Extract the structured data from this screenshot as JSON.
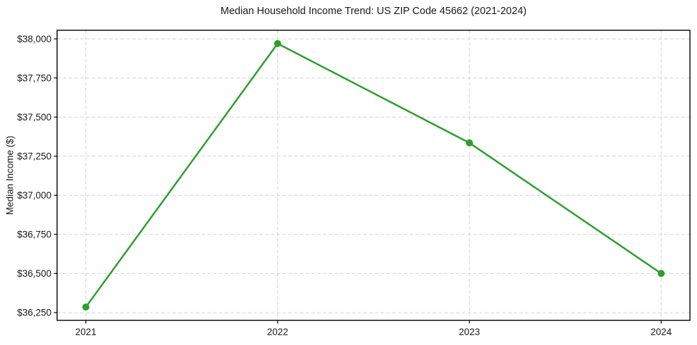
{
  "chart_data": {
    "type": "line",
    "title": "Median Household Income Trend: US ZIP Code 45662 (2021-2024)",
    "xlabel": "",
    "ylabel": "Median Income ($)",
    "categories": [
      "2021",
      "2022",
      "2023",
      "2024"
    ],
    "x": [
      2021,
      2022,
      2023,
      2024
    ],
    "series": [
      {
        "name": "Median Household Income",
        "values": [
          36285,
          37970,
          37335,
          36500
        ]
      }
    ],
    "xlim": [
      2020.85,
      2024.15
    ],
    "ylim": [
      36200,
      38055
    ],
    "yticks": [
      36250,
      36500,
      36750,
      37000,
      37250,
      37500,
      37750,
      38000
    ],
    "ytick_labels": [
      "$36,250",
      "$36,500",
      "$36,750",
      "$37,000",
      "$37,250",
      "$37,500",
      "$37,750",
      "$38,000"
    ],
    "grid": true,
    "grid_style": "dashed",
    "legend_position": "none",
    "marker": "circle",
    "colors": {
      "line": "#2ca02c",
      "marker": "#2ca02c",
      "grid": "#d3d3d3",
      "spine": "#000000",
      "text": "#1a1a1a",
      "background": "#ffffff"
    }
  }
}
